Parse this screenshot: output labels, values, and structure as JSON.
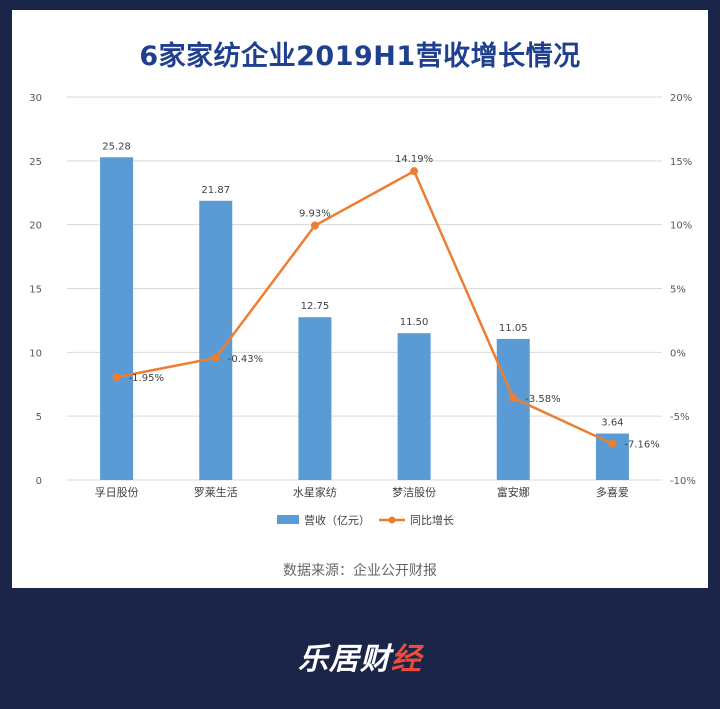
{
  "chart_data": {
    "type": "bar",
    "title": "6家家纺企业2019H1营收增长情况",
    "categories": [
      "孚日股份",
      "罗莱生活",
      "水星家纺",
      "梦洁股份",
      "富安娜",
      "多喜爱"
    ],
    "series": [
      {
        "name": "营收（亿元）",
        "type": "bar",
        "axis": "left",
        "values": [
          25.28,
          21.87,
          12.75,
          11.5,
          11.05,
          3.64
        ],
        "labels": [
          "25.28",
          "21.87",
          "12.75",
          "11.50",
          "11.05",
          "3.64"
        ],
        "color": "#5b9bd5"
      },
      {
        "name": "同比增长",
        "type": "line",
        "axis": "right",
        "values": [
          -1.95,
          -0.43,
          9.93,
          14.19,
          -3.58,
          -7.16
        ],
        "labels": [
          "-1.95%",
          "-0.43%",
          "9.93%",
          "14.19%",
          "-3.58%",
          "-7.16%"
        ],
        "color": "#ed7d31"
      }
    ],
    "y_left": {
      "ylim": [
        0,
        30
      ],
      "ticks": [
        "0",
        "5",
        "10",
        "15",
        "20",
        "25",
        "30"
      ]
    },
    "y_right": {
      "ylim": [
        -10,
        20
      ],
      "ticks": [
        "-10%",
        "-5%",
        "0%",
        "5%",
        "10%",
        "15%",
        "20%"
      ]
    },
    "grid": true,
    "legend": "bottom"
  },
  "source": "数据来源：企业公开财报",
  "brand": {
    "main": "乐居财",
    "accent": "经"
  },
  "colors": {
    "background": "#1b2547",
    "title": "#1f3f8f",
    "grid": "#d9d9d9"
  }
}
